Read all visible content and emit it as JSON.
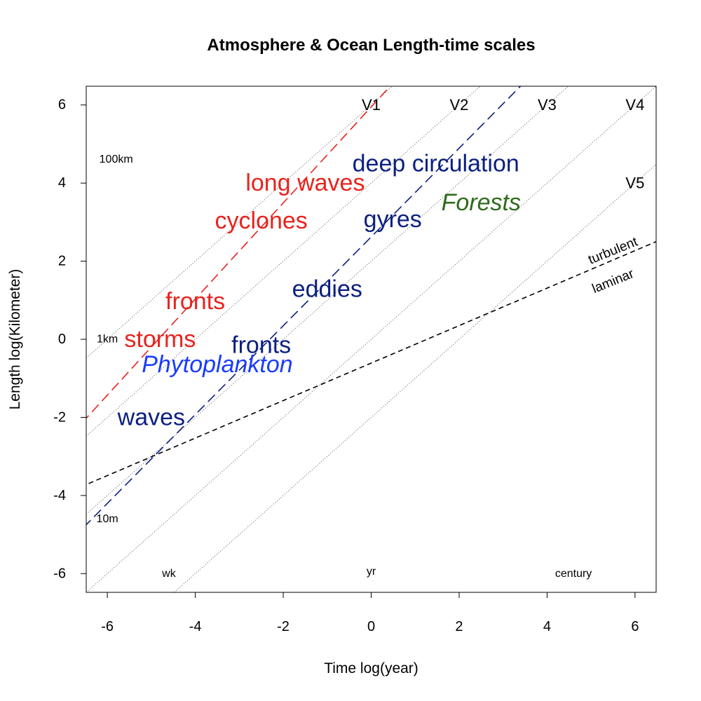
{
  "chart_data": {
    "type": "line",
    "title": "Atmosphere & Ocean Length-time scales",
    "xlabel": "Time log(year)",
    "ylabel": "Length log(Kilometer)",
    "xlim": [
      -6.48,
      6.48
    ],
    "ylim": [
      -6.48,
      6.48
    ],
    "xticks": [
      -6,
      -4,
      -2,
      0,
      2,
      4,
      6
    ],
    "yticks": [
      -6,
      -4,
      -2,
      0,
      2,
      4,
      6
    ],
    "grid": false,
    "lines": [
      {
        "id": "v1-line",
        "intercept": 6,
        "slope": 1,
        "style": "dotted",
        "color": "#555555"
      },
      {
        "id": "v2-line",
        "intercept": 4,
        "slope": 1,
        "style": "dotted",
        "color": "#555555"
      },
      {
        "id": "v3-line",
        "intercept": 2,
        "slope": 1,
        "style": "dotted",
        "color": "#555555"
      },
      {
        "id": "v4-line",
        "intercept": 0,
        "slope": 1,
        "style": "dotted",
        "color": "#555555"
      },
      {
        "id": "v5-line",
        "intercept": -2,
        "slope": 1,
        "style": "dotted",
        "color": "#555555"
      },
      {
        "id": "atmosphere-line",
        "intercept": 5.95,
        "slope": 1.23,
        "style": "longdash",
        "color": "#e8231e"
      },
      {
        "id": "ocean-line",
        "intercept": 2.62,
        "slope": 1.137,
        "style": "longdash",
        "color": "#0b1f80"
      },
      {
        "id": "turbulent-laminar-line",
        "intercept": -0.61,
        "slope": 0.48,
        "style": "dashed",
        "color": "#000000"
      }
    ],
    "annotations": [
      {
        "text": "V1",
        "x": 0,
        "y": 6,
        "color": "#000000",
        "size": "medium"
      },
      {
        "text": "V2",
        "x": 2,
        "y": 6,
        "color": "#000000",
        "size": "medium"
      },
      {
        "text": "V3",
        "x": 4,
        "y": 6,
        "color": "#000000",
        "size": "medium"
      },
      {
        "text": "V4",
        "x": 6,
        "y": 6,
        "color": "#000000",
        "size": "medium"
      },
      {
        "text": "V5",
        "x": 6,
        "y": 4,
        "color": "#000000",
        "size": "medium"
      },
      {
        "text": "100km",
        "x": -5.8,
        "y": 4.6,
        "color": "#000000",
        "size": "small"
      },
      {
        "text": "1km",
        "x": -6,
        "y": 0,
        "color": "#000000",
        "size": "small"
      },
      {
        "text": "10m",
        "x": -6,
        "y": -4.6,
        "color": "#000000",
        "size": "small"
      },
      {
        "text": "wk",
        "x": -4.6,
        "y": -6,
        "color": "#000000",
        "size": "small"
      },
      {
        "text": "yr",
        "x": 0,
        "y": -5.95,
        "color": "#000000",
        "size": "small"
      },
      {
        "text": "century",
        "x": 4.6,
        "y": -6,
        "color": "#000000",
        "size": "small"
      },
      {
        "text": "long waves",
        "x": -1.5,
        "y": 4.0,
        "color": "#e8231e",
        "size": "large"
      },
      {
        "text": "cyclones",
        "x": -2.5,
        "y": 3.03,
        "color": "#e8231e",
        "size": "large"
      },
      {
        "text": "fronts",
        "x": -4.0,
        "y": 0.97,
        "color": "#e8231e",
        "size": "large"
      },
      {
        "text": "storms",
        "x": -4.8,
        "y": 0.0,
        "color": "#e8231e",
        "size": "large"
      },
      {
        "text": "deep circulation",
        "x": 1.47,
        "y": 4.5,
        "color": "#0b1f80",
        "size": "large"
      },
      {
        "text": "gyres",
        "x": 0.49,
        "y": 3.07,
        "color": "#0b1f80",
        "size": "large"
      },
      {
        "text": "eddies",
        "x": -1.0,
        "y": 1.28,
        "color": "#0b1f80",
        "size": "large"
      },
      {
        "text": "fronts",
        "x": -2.5,
        "y": -0.15,
        "color": "#0b1f80",
        "size": "large"
      },
      {
        "text": "waves",
        "x": -5.0,
        "y": -2.0,
        "color": "#0b1f80",
        "size": "large"
      },
      {
        "text": "Phytoplankton",
        "x": -3.5,
        "y": -0.65,
        "color": "#1a3cff",
        "size": "large",
        "italic": true
      },
      {
        "text": "Forests",
        "x": 2.5,
        "y": 3.5,
        "color": "#2e6b1a",
        "size": "large",
        "italic": true
      },
      {
        "text": "turbulent",
        "x": 5.5,
        "y": 2.26,
        "color": "#000000",
        "size": "medium-small",
        "rotate": -22
      },
      {
        "text": "laminar",
        "x": 5.5,
        "y": 1.48,
        "color": "#000000",
        "size": "medium-small",
        "rotate": -22
      }
    ]
  }
}
